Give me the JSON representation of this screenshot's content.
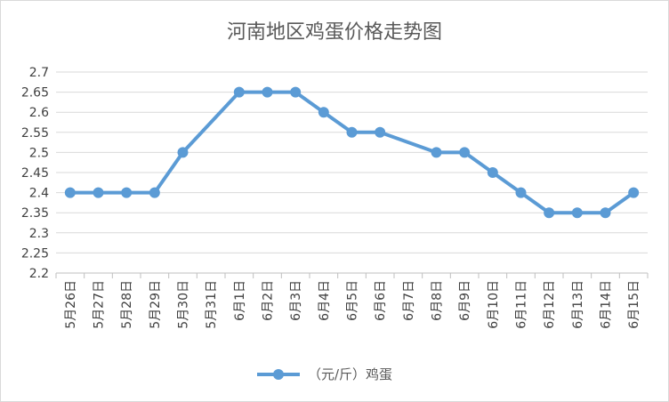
{
  "chart_data": {
    "type": "line",
    "title": "河南地区鸡蛋价格走势图",
    "xlabel": "",
    "ylabel": "",
    "categories": [
      "5月26日",
      "5月27日",
      "5月28日",
      "5月29日",
      "5月30日",
      "5月31日",
      "6月1日",
      "6月2日",
      "6月3日",
      "6月4日",
      "6月5日",
      "6月6日",
      "6月7日",
      "6月8日",
      "6月9日",
      "6月10日",
      "6月11日",
      "6月12日",
      "6月13日",
      "6月14日",
      "6月15日"
    ],
    "series": [
      {
        "name": "（元/斤）鸡蛋",
        "color": "#5b9bd5",
        "values": [
          2.4,
          2.4,
          2.4,
          2.4,
          2.5,
          null,
          2.65,
          2.65,
          2.65,
          2.6,
          2.55,
          2.55,
          null,
          2.5,
          2.5,
          2.45,
          2.4,
          2.35,
          2.35,
          2.35,
          2.4
        ]
      }
    ],
    "ylim": [
      2.2,
      2.7
    ],
    "yticks": [
      "2.2",
      "2.25",
      "2.3",
      "2.35",
      "2.4",
      "2.45",
      "2.5",
      "2.55",
      "2.6",
      "2.65",
      "2.7"
    ],
    "grid": true,
    "legend_position": "bottom"
  }
}
